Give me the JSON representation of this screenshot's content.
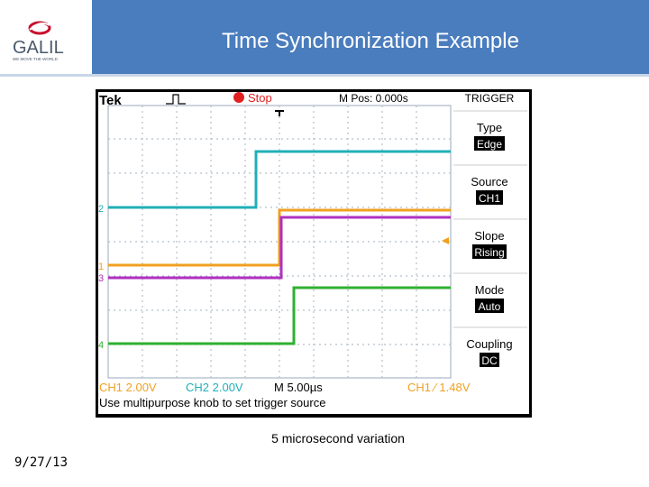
{
  "header": {
    "title": "Time Synchronization Example",
    "logo_text": "GALIL",
    "logo_tagline": "WE MOVE THE WORLD",
    "bar_color": "#4a7dbe"
  },
  "scope": {
    "brand": "Tek",
    "run_state": "Stop",
    "m_pos": "M Pos: 0.000s",
    "trigger_menu": {
      "title": "TRIGGER",
      "items": [
        {
          "label": "Type",
          "value": "Edge"
        },
        {
          "label": "Source",
          "value": "CH1"
        },
        {
          "label": "Slope",
          "value": "Rising"
        },
        {
          "label": "Mode",
          "value": "Auto"
        },
        {
          "label": "Coupling",
          "value": "DC"
        }
      ]
    },
    "status_line": {
      "ch1": "CH1  2.00V",
      "ch2": "CH2  2.00V",
      "time": "M 5.00µs",
      "trigger": "CH1 ∕ 1.48V"
    },
    "help_text": "Use multipurpose knob to set trigger source",
    "channel_markers": [
      "2",
      "1",
      "3",
      "4"
    ],
    "channel_colors": {
      "ch1": "#f0a020",
      "ch2": "#20b0b8",
      "ch3": "#b030c0",
      "ch4": "#30b030"
    }
  },
  "caption": "5 microsecond variation",
  "date": "9/27/13"
}
